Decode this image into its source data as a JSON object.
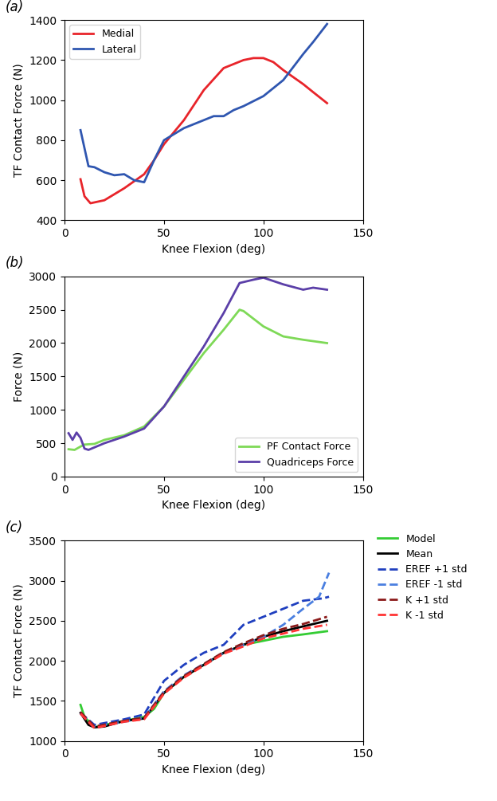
{
  "chart_data": [
    {
      "type": "line",
      "title": "(a)",
      "x_label": "Knee Flexion (deg)",
      "y_label": "TF Contact Force (N)",
      "xlim": [
        0,
        150
      ],
      "xticks": [
        0,
        50,
        100,
        150
      ],
      "ylim": [
        400,
        1400
      ],
      "yticks": [
        400,
        600,
        800,
        1000,
        1200,
        1400
      ],
      "legend": "upper left",
      "series": [
        {
          "name": "Medial",
          "color": "#e8242a",
          "line_style": "solid",
          "x": [
            8,
            10,
            13,
            20,
            30,
            40,
            45,
            50,
            60,
            70,
            80,
            90,
            95,
            100,
            105,
            110,
            120,
            125,
            132
          ],
          "values": [
            605,
            520,
            485,
            500,
            560,
            630,
            700,
            780,
            900,
            1050,
            1160,
            1200,
            1210,
            1210,
            1190,
            1150,
            1080,
            1040,
            985
          ]
        },
        {
          "name": "Lateral",
          "color": "#2f56b0",
          "line_style": "solid",
          "x": [
            8,
            10,
            12,
            15,
            20,
            25,
            30,
            35,
            40,
            45,
            50,
            60,
            70,
            75,
            80,
            85,
            90,
            100,
            110,
            120,
            125,
            132
          ],
          "values": [
            850,
            760,
            670,
            665,
            640,
            625,
            630,
            600,
            590,
            700,
            800,
            860,
            900,
            920,
            920,
            950,
            970,
            1020,
            1100,
            1230,
            1290,
            1380
          ]
        }
      ]
    },
    {
      "type": "line",
      "title": "(b)",
      "x_label": "Knee Flexion (deg)",
      "y_label": "Force (N)",
      "xlim": [
        0,
        150
      ],
      "xticks": [
        0,
        50,
        100,
        150
      ],
      "ylim": [
        0,
        3000
      ],
      "yticks": [
        0,
        500,
        1000,
        1500,
        2000,
        2500,
        3000
      ],
      "legend": "lower right",
      "series": [
        {
          "name": "PF Contact Force",
          "color": "#7ed957",
          "line_style": "solid",
          "x": [
            2,
            5,
            8,
            10,
            15,
            20,
            30,
            40,
            50,
            60,
            70,
            80,
            88,
            90,
            100,
            110,
            120,
            132
          ],
          "values": [
            410,
            400,
            450,
            480,
            490,
            550,
            620,
            750,
            1050,
            1450,
            1850,
            2200,
            2500,
            2480,
            2250,
            2100,
            2050,
            2000
          ]
        },
        {
          "name": "Quadriceps Force",
          "color": "#5b3fa8",
          "line_style": "solid",
          "x": [
            2,
            4,
            6,
            8,
            10,
            12,
            20,
            30,
            40,
            50,
            60,
            70,
            80,
            88,
            95,
            100,
            110,
            120,
            125,
            132
          ],
          "values": [
            650,
            550,
            660,
            580,
            420,
            400,
            500,
            600,
            720,
            1050,
            1500,
            1950,
            2450,
            2900,
            2950,
            2980,
            2880,
            2800,
            2830,
            2800
          ]
        }
      ]
    },
    {
      "type": "line",
      "title": "(c)",
      "x_label": "Knee Flexion (deg)",
      "y_label": "TF Contact Force (N)",
      "xlim": [
        0,
        150
      ],
      "xticks": [
        0,
        50,
        100,
        150
      ],
      "ylim": [
        1000,
        3500
      ],
      "yticks": [
        1000,
        1500,
        2000,
        2500,
        3000,
        3500
      ],
      "legend": "right",
      "series": [
        {
          "name": "Model",
          "color": "#33cc33",
          "line_style": "solid",
          "x": [
            8,
            10,
            15,
            20,
            30,
            40,
            45,
            50,
            60,
            70,
            80,
            90,
            100,
            110,
            120,
            132
          ],
          "values": [
            1450,
            1300,
            1170,
            1200,
            1250,
            1300,
            1400,
            1600,
            1800,
            1950,
            2100,
            2200,
            2250,
            2300,
            2330,
            2370
          ]
        },
        {
          "name": "Mean",
          "color": "#000000",
          "line_style": "solid",
          "x": [
            8,
            12,
            15,
            20,
            30,
            40,
            50,
            60,
            70,
            80,
            90,
            100,
            110,
            120,
            132
          ],
          "values": [
            1350,
            1200,
            1170,
            1180,
            1250,
            1280,
            1600,
            1800,
            1950,
            2100,
            2200,
            2300,
            2370,
            2430,
            2500
          ]
        },
        {
          "name": "EREF +1 std",
          "color": "#1f3fbf",
          "line_style": "dashed",
          "x": [
            8,
            15,
            30,
            40,
            50,
            60,
            70,
            80,
            90,
            100,
            110,
            120,
            130,
            133
          ],
          "values": [
            1350,
            1200,
            1270,
            1330,
            1750,
            1950,
            2100,
            2200,
            2450,
            2550,
            2650,
            2750,
            2780,
            2800
          ]
        },
        {
          "name": "EREF -1 std",
          "color": "#4a7fe0",
          "line_style": "dashed",
          "x": [
            8,
            15,
            30,
            40,
            50,
            60,
            70,
            80,
            90,
            100,
            110,
            120,
            128,
            133
          ],
          "values": [
            1340,
            1180,
            1240,
            1290,
            1620,
            1820,
            1960,
            2100,
            2200,
            2300,
            2450,
            2650,
            2800,
            3100
          ]
        },
        {
          "name": "K +1 std",
          "color": "#8b1a1a",
          "line_style": "dashed",
          "x": [
            8,
            15,
            30,
            40,
            50,
            60,
            70,
            80,
            90,
            100,
            110,
            120,
            132
          ],
          "values": [
            1360,
            1180,
            1250,
            1290,
            1610,
            1810,
            1960,
            2110,
            2220,
            2320,
            2400,
            2460,
            2550
          ]
        },
        {
          "name": "K -1 std",
          "color": "#ff3333",
          "line_style": "dashed",
          "x": [
            8,
            15,
            30,
            40,
            50,
            60,
            70,
            80,
            90,
            100,
            110,
            120,
            132
          ],
          "values": [
            1340,
            1160,
            1240,
            1270,
            1590,
            1790,
            1940,
            2090,
            2180,
            2280,
            2340,
            2400,
            2450
          ]
        }
      ]
    }
  ]
}
